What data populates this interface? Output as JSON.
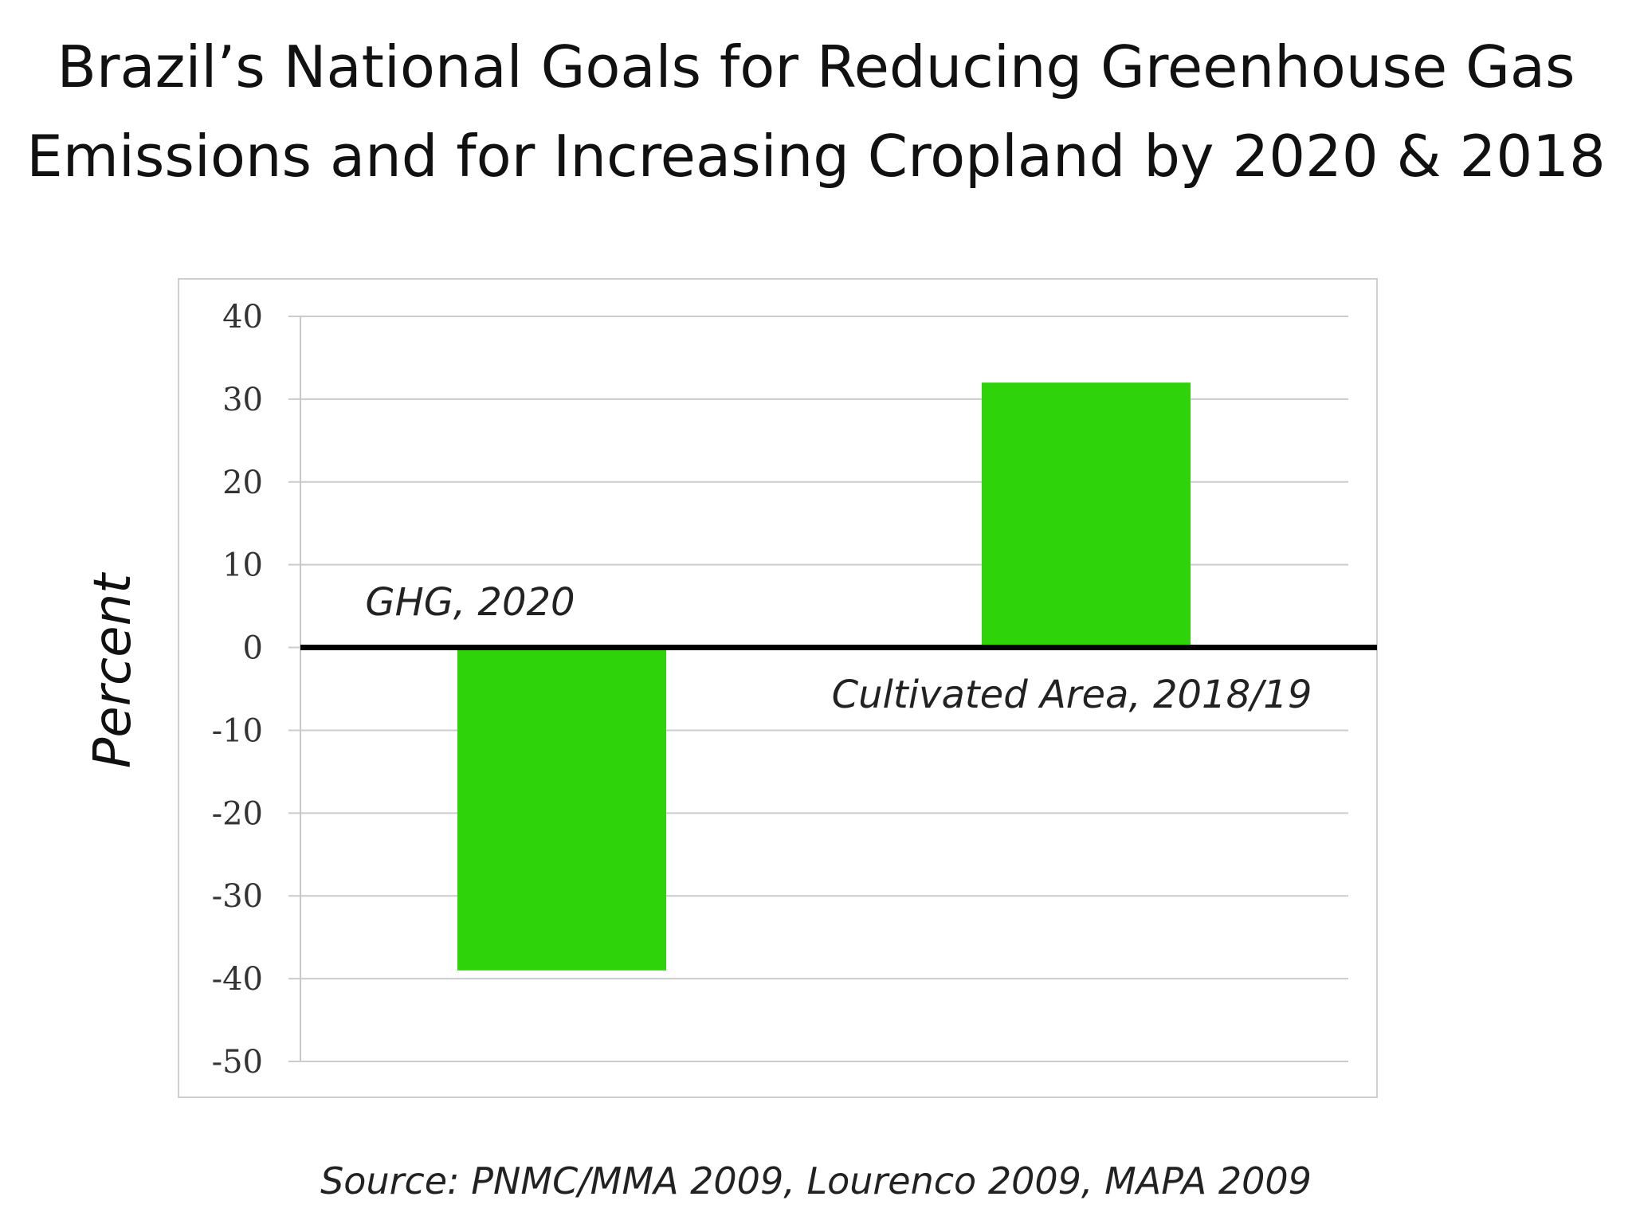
{
  "chart_data": {
    "type": "bar",
    "title": {
      "line1": "Brazil’s National Goals for Reducing Greenhouse Gas",
      "line2": "Emissions and for Increasing Cropland by 2020 & 2018"
    },
    "ylabel": "Percent",
    "xlabel": "",
    "categories": [
      "GHG, 2020",
      "Cultivated Area, 2018/19"
    ],
    "values": [
      -39,
      32
    ],
    "ylim": [
      -50,
      40
    ],
    "yticks": [
      "40",
      "30",
      "20",
      "10",
      "0",
      "-10",
      "-20",
      "-30",
      "-40",
      "-50"
    ],
    "grid": true,
    "bar_color": "#2ed30a",
    "source": "Source: PNMC/MMA 2009, Lourenco 2009, MAPA 2009"
  }
}
